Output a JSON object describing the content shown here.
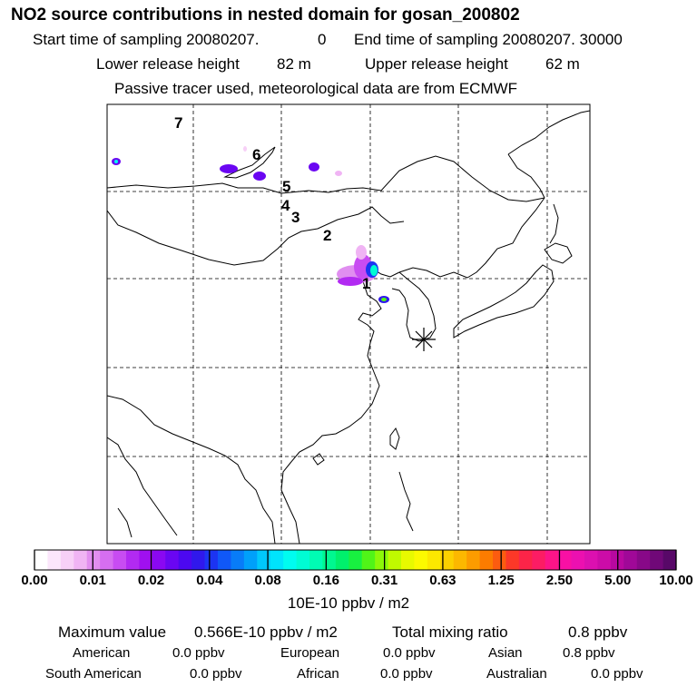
{
  "header": {
    "title": "NO2 source contributions in nested domain for gosan_200802",
    "start_label": "Start time of sampling 20080207.",
    "start_value": "0",
    "end_label": "End time of sampling 20080207. 30000",
    "lower_label": "Lower release height",
    "lower_value": "82 m",
    "upper_label": "Upper release height",
    "upper_value": "62 m",
    "note": "Passive tracer used, meteorological data are from ECMWF"
  },
  "chart_data": {
    "type": "heatmap",
    "title": "NO2 source contributions in nested domain for gosan_200802",
    "colorbar": {
      "ticks": [
        "0.00",
        "0.01",
        "0.02",
        "0.04",
        "0.08",
        "0.16",
        "0.31",
        "0.63",
        "1.25",
        "2.50",
        "5.00",
        "10.00"
      ],
      "unit": "10E-10 ppbv / m2",
      "colors": [
        "#ffffff",
        "#fbe6fb",
        "#f7d0f7",
        "#f0b4f4",
        "#e28ef0",
        "#d66ef0",
        "#c84cf2",
        "#b22af2",
        "#a010f0",
        "#8a08f2",
        "#6a06f2",
        "#4c08f0",
        "#3018ec",
        "#1c34f2",
        "#1058f8",
        "#087cf8",
        "#00a0fa",
        "#00c8fc",
        "#00e4fc",
        "#00fcf0",
        "#00fcd4",
        "#00fcb4",
        "#00f890",
        "#00f06c",
        "#18f040",
        "#50f418",
        "#8cf808",
        "#c0fa00",
        "#e8fa00",
        "#fcfa00",
        "#fce800",
        "#fcd000",
        "#fcb800",
        "#fc9c00",
        "#fc7c00",
        "#fc5c10",
        "#fc3828",
        "#fc2448",
        "#fc1c64",
        "#fc1488",
        "#f810a4",
        "#ec10b0",
        "#dc10b0",
        "#cc0ca8",
        "#b808a0",
        "#a00898",
        "#880888",
        "#700878",
        "#580868"
      ]
    },
    "labels": [
      "1",
      "2",
      "3",
      "4",
      "5",
      "6",
      "7"
    ],
    "receptor_marker": "asterisk",
    "source_blobs": [
      {
        "lon": 117.0,
        "lat": 40.2,
        "value_band": "0.08-0.16"
      },
      {
        "lon": 116.2,
        "lat": 39.9,
        "value_band": "0.02-0.04"
      },
      {
        "lon": 114.8,
        "lat": 39.8,
        "value_band": "0.01-0.02"
      },
      {
        "lon": 118.3,
        "lat": 37.1,
        "value_band": "0.16-0.31"
      },
      {
        "lon": 108.0,
        "lat": 52.0,
        "value_band": "0.02-0.04"
      },
      {
        "lon": 112.0,
        "lat": 50.5,
        "value_band": "0.02-0.04"
      },
      {
        "lon": 122.0,
        "lat": 51.5,
        "value_band": "0.02-0.04"
      },
      {
        "lon": 92.0,
        "lat": 53.0,
        "value_band": "0.02-0.04"
      },
      {
        "lon": 126.0,
        "lat": 50.0,
        "value_band": "0.00-0.01"
      }
    ]
  },
  "summary": {
    "max_label": "Maximum value",
    "max_value": "0.566E-10 ppbv / m2",
    "total_label": "Total mixing ratio",
    "total_value": "0.8 ppbv",
    "regions": [
      {
        "name": "American",
        "value": "0.0 ppbv"
      },
      {
        "name": "European",
        "value": "0.0 ppbv"
      },
      {
        "name": "Asian",
        "value": "0.8 ppbv"
      },
      {
        "name": "South American",
        "value": "0.0 ppbv"
      },
      {
        "name": "African",
        "value": "0.0 ppbv"
      },
      {
        "name": "Australian",
        "value": "0.0 ppbv"
      }
    ]
  },
  "colors": {
    "frame": "#000000",
    "grid": "#000000",
    "background": "#ffffff"
  },
  "icons": {
    "receptor": "asterisk-icon"
  }
}
